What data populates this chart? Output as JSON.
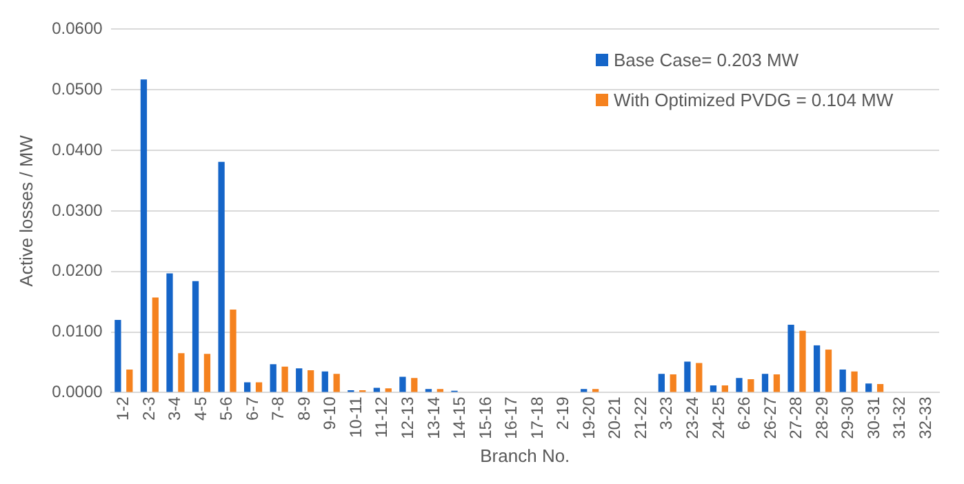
{
  "chart_data": {
    "type": "bar",
    "xlabel": "Branch No.",
    "ylabel": "Active losses / MW",
    "categories": [
      "1-2",
      "2-3",
      "3-4",
      "4-5",
      "5-6",
      "6-7",
      "7-8",
      "8-9",
      "9-10",
      "10-11",
      "11-12",
      "12-13",
      "13-14",
      "14-15",
      "15-16",
      "16-17",
      "17-18",
      "2-19",
      "19-20",
      "20-21",
      "21-22",
      "3-23",
      "23-24",
      "24-25",
      "6-26",
      "26-27",
      "27-28",
      "28-29",
      "29-30",
      "30-31",
      "31-32",
      "32-33"
    ],
    "series": [
      {
        "name": "Base Case= 0.203 MW",
        "color": "#1565c8",
        "values": [
          0.012,
          0.0517,
          0.0197,
          0.0184,
          0.0381,
          0.0017,
          0.0047,
          0.004,
          0.0035,
          0.0004,
          0.0008,
          0.0026,
          0.0006,
          0.0003,
          0,
          0,
          0,
          0,
          0.0006,
          0,
          0,
          0.0031,
          0.0051,
          0.0012,
          0.0024,
          0.0031,
          0.0112,
          0.0078,
          0.0038,
          0.0015,
          0,
          0
        ]
      },
      {
        "name": "With Optimized PVDG = 0.104 MW",
        "color": "#f5821f",
        "values": [
          0.0038,
          0.0157,
          0.0065,
          0.0064,
          0.0137,
          0.0017,
          0.0043,
          0.0037,
          0.0031,
          0.0004,
          0.0007,
          0.0024,
          0.0006,
          null,
          0,
          0,
          0,
          0,
          0.0006,
          0,
          0,
          0.003,
          0.0049,
          0.0012,
          0.0022,
          0.003,
          0.0102,
          0.0071,
          0.0035,
          0.0014,
          0,
          0
        ]
      }
    ],
    "ylim": [
      0,
      0.06
    ],
    "yticks": [
      {
        "value": 0,
        "label": "0.0000"
      },
      {
        "value": 0.01,
        "label": "0.0100"
      },
      {
        "value": 0.02,
        "label": "0.0200"
      },
      {
        "value": 0.03,
        "label": "0.0300"
      },
      {
        "value": 0.04,
        "label": "0.0400"
      },
      {
        "value": 0.05,
        "label": "0.0500"
      },
      {
        "value": 0.06,
        "label": "0.0600"
      }
    ],
    "grid": "y",
    "legend": "top right"
  }
}
